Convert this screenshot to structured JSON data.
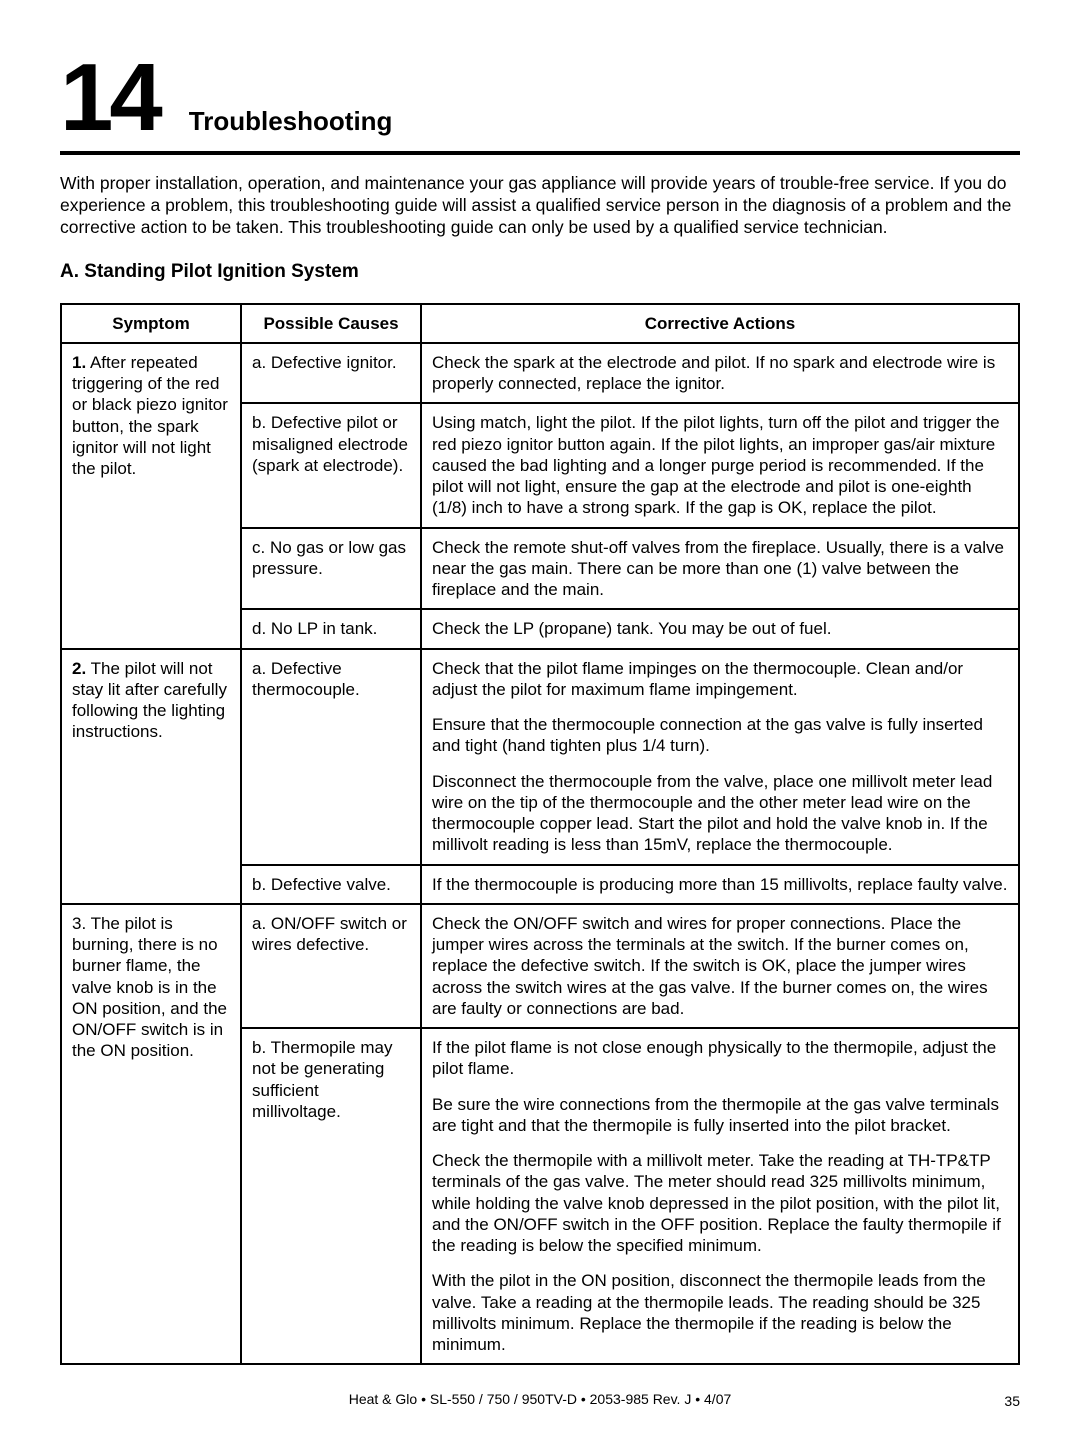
{
  "chapter": {
    "number": "14",
    "title": "Troubleshooting"
  },
  "intro": "With proper installation, operation, and maintenance your gas appliance will provide years of trouble-free service. If you do experience a problem, this troubleshooting guide will assist a qualified service person in the diagnosis of a problem and the corrective action to be taken. This troubleshooting guide can only be used by a qualified service technician.",
  "section": {
    "label": "A.  Standing Pilot Ignition System"
  },
  "table": {
    "headers": {
      "symptom": "Symptom",
      "causes": "Possible Causes",
      "actions": "Corrective Actions"
    }
  },
  "r1": {
    "symptom_lead": "1.",
    "symptom_rest": " After repeated triggering of the red or black piezo ignitor button, the spark ignitor will not light the pilot.",
    "a_cause": "a. Defective ignitor.",
    "a_action": "Check the spark at the electrode and pilot. If no spark and electrode wire is properly connected, replace the ignitor.",
    "b_cause": "b. Defective pilot or misaligned electrode (spark at electrode).",
    "b_action": "Using match, light the pilot. If the pilot lights, turn off the pilot and trigger the red piezo ignitor button again. If the pilot lights, an improper gas/air mixture caused the bad lighting and a longer purge period is recommended. If the pilot will not light, ensure the gap at the electrode and pilot is one-eighth (1/8) inch to have a strong spark. If the gap is OK, replace the pilot.",
    "c_cause": "c. No gas or low gas pressure.",
    "c_action": "Check the remote shut-off valves from the fireplace. Usually, there is a valve near the gas main. There can be more than one (1) valve between the fireplace and the main.",
    "d_cause": "d. No LP in tank.",
    "d_action": "Check the LP (propane) tank. You may be out of fuel."
  },
  "r2": {
    "symptom_lead": "2.",
    "symptom_rest": "  The pilot will not stay lit after carefully following the lighting instructions.",
    "a_cause": "a. Defective thermocouple.",
    "a_action_p1": "Check that the pilot flame impinges on the thermocouple. Clean and/or adjust the pilot for maximum flame impingement.",
    "a_action_p2": "Ensure that the thermocouple connection at the gas valve is fully inserted and tight (hand tighten plus 1/4 turn).",
    "a_action_p3": "Disconnect the thermocouple from the valve, place one millivolt meter lead wire on the tip of the thermocouple and the other meter lead wire on the thermocouple copper lead. Start the pilot and hold the valve knob in. If the millivolt reading is less than 15mV, replace the thermocouple.",
    "b_cause": "b. Defective valve.",
    "b_action": "If the thermocouple is producing more than 15 millivolts, replace faulty valve."
  },
  "r3": {
    "symptom": "3. The pilot is burning, there is no burner flame, the valve knob is in the ON position, and the ON/OFF switch is in the ON position.",
    "a_cause": "a. ON/OFF switch or wires defective.",
    "a_action": "Check the ON/OFF switch and wires for proper connections. Place the jumper wires across the terminals at the switch. If the burner comes on, replace the defective switch. If the switch is OK, place the jumper wires across the switch wires at the gas valve. If the burner comes on, the wires are faulty or connections are bad.",
    "b_cause": "b. Thermopile may not be generating sufficient millivoltage.",
    "b_action_p1": "If the pilot flame is not close enough physically to the thermopile, adjust the pilot flame.",
    "b_action_p2": "Be sure the wire connections from the thermopile at the gas valve terminals are tight and that the thermopile is fully inserted into the pilot bracket.",
    "b_action_p3": "Check the thermopile with a millivolt meter. Take the reading at TH-TP&TP terminals of the gas valve. The meter should read 325 millivolts minimum, while holding the valve knob depressed in the pilot position, with the pilot lit, and the ON/OFF switch in the OFF position. Replace the faulty thermopile if the reading is below the specified minimum.",
    "b_action_p4": "With the pilot in the ON position, disconnect the thermopile leads from the valve. Take a reading at the thermopile leads. The reading should be 325 millivolts minimum. Replace the thermopile if the reading is below the minimum."
  },
  "footer": "Heat & Glo  •  SL-550 / 750 / 950TV-D  •  2053-985 Rev. J  •  4/07",
  "page_number": "35"
}
